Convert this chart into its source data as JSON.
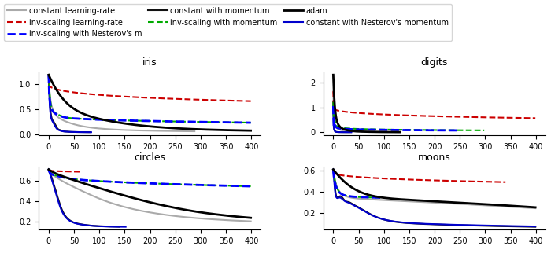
{
  "datasets_order": [
    "iris",
    "digits",
    "circles",
    "moons"
  ],
  "legend_entries": [
    {
      "label": "constant learning-rate",
      "color": "#aaaaaa",
      "linestyle": "-",
      "lw": 1.5
    },
    {
      "label": "inv-scaling learning-rate",
      "color": "#cc0000",
      "linestyle": "--",
      "lw": 1.5
    },
    {
      "label": "inv-scaling with Nesterov's m",
      "color": "#0000ff",
      "linestyle": "--",
      "lw": 2.0
    },
    {
      "label": "constant with momentum",
      "color": "#111111",
      "linestyle": "-",
      "lw": 1.5
    },
    {
      "label": "inv-scaling with momentum",
      "color": "#00aa00",
      "linestyle": "--",
      "lw": 1.5
    },
    {
      "label": "adam",
      "color": "#000000",
      "linestyle": "-",
      "lw": 2.0
    },
    {
      "label": "constant with Nesterov's momentum",
      "color": "#0000cc",
      "linestyle": "-",
      "lw": 1.5
    }
  ],
  "figsize": [
    7.0,
    3.27
  ],
  "dpi": 100,
  "legend_fontsize": 7,
  "title_fontsize": 9,
  "tick_fontsize": 7
}
